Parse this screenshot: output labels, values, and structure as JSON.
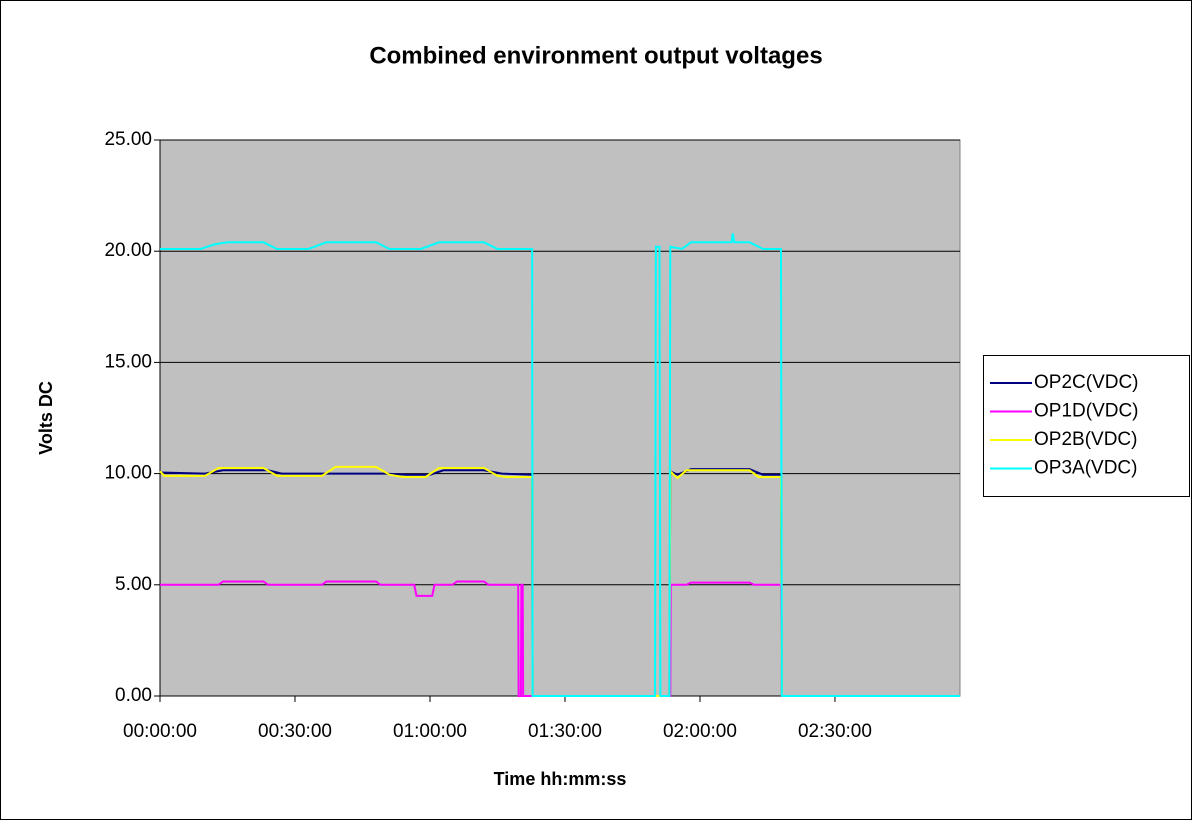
{
  "chart_data": {
    "type": "line",
    "title": "Combined environment output voltages",
    "xlabel": "Time hh:mm:ss",
    "ylabel": "Volts DC",
    "xlim": [
      0,
      10667
    ],
    "ylim": [
      0,
      25
    ],
    "xticks": [
      {
        "value": 0,
        "label": "00:00:00"
      },
      {
        "value": 1800,
        "label": "00:30:00"
      },
      {
        "value": 3600,
        "label": "01:00:00"
      },
      {
        "value": 5400,
        "label": "01:30:00"
      },
      {
        "value": 7200,
        "label": "02:00:00"
      },
      {
        "value": 9000,
        "label": "02:30:00"
      }
    ],
    "yticks": [
      {
        "value": 0,
        "label": "0.00"
      },
      {
        "value": 5,
        "label": "5.00"
      },
      {
        "value": 10,
        "label": "10.00"
      },
      {
        "value": 15,
        "label": "15.00"
      },
      {
        "value": 20,
        "label": "20.00"
      },
      {
        "value": 25,
        "label": "25.00"
      }
    ],
    "grid": true,
    "legend": "right",
    "series": [
      {
        "name": "OP2C(VDC)",
        "color": "#000080",
        "x": [
          0,
          600,
          840,
          1440,
          1620,
          3000,
          3300,
          3600,
          3780,
          4320,
          4560,
          4962,
          4968,
          6792,
          6804,
          6900,
          7080,
          7860,
          8040,
          8280,
          8292,
          10667
        ],
        "values": [
          10.05,
          10.0,
          10.15,
          10.15,
          10.0,
          10.0,
          9.95,
          9.95,
          10.15,
          10.15,
          10.0,
          9.95,
          0,
          0,
          10.1,
          9.95,
          10.2,
          10.2,
          9.95,
          9.95,
          0,
          0
        ]
      },
      {
        "name": "OP1D(VDC)",
        "color": "#ff00ff",
        "x": [
          0,
          780,
          840,
          1380,
          1440,
          2160,
          2220,
          2880,
          2940,
          3390,
          3420,
          3630,
          3660,
          3900,
          3960,
          4320,
          4380,
          4776,
          4782,
          4812,
          4818,
          4836,
          4842,
          6804,
          6810,
          7020,
          7080,
          7860,
          7920,
          8280,
          8292,
          10667
        ],
        "values": [
          5.0,
          5.0,
          5.15,
          5.15,
          5.0,
          5.0,
          5.15,
          5.15,
          5.0,
          5.0,
          4.5,
          4.5,
          5.0,
          5.0,
          5.15,
          5.15,
          5.0,
          5.0,
          0,
          0,
          5.0,
          5.0,
          0,
          0,
          5.0,
          5.0,
          5.1,
          5.1,
          5.0,
          5.0,
          0,
          0
        ]
      },
      {
        "name": "OP2B(VDC)",
        "color": "#ffff00",
        "x": [
          0,
          60,
          600,
          780,
          1380,
          1560,
          2160,
          2340,
          2880,
          3060,
          3240,
          3540,
          3720,
          4320,
          4500,
          4620,
          4962,
          4968,
          6792,
          6804,
          6900,
          7020,
          7860,
          7980,
          8280,
          8292,
          10667
        ],
        "values": [
          10.1,
          9.9,
          9.9,
          10.25,
          10.25,
          9.9,
          9.9,
          10.3,
          10.3,
          9.95,
          9.85,
          9.85,
          10.25,
          10.25,
          9.9,
          9.85,
          9.85,
          0,
          0,
          10.1,
          9.8,
          10.15,
          10.15,
          9.85,
          9.85,
          0,
          0
        ]
      },
      {
        "name": "OP3A(VDC)",
        "color": "#00ffff",
        "x": [
          0,
          540,
          720,
          900,
          1380,
          1560,
          1980,
          2220,
          2880,
          3060,
          3480,
          3720,
          4320,
          4500,
          4962,
          4968,
          6600,
          6612,
          6660,
          6672,
          6792,
          6804,
          6960,
          7080,
          7620,
          7638,
          7656,
          7860,
          8040,
          8280,
          8292,
          10667
        ],
        "values": [
          20.1,
          20.1,
          20.3,
          20.4,
          20.4,
          20.1,
          20.1,
          20.4,
          20.4,
          20.1,
          20.1,
          20.4,
          20.4,
          20.1,
          20.1,
          0,
          0,
          20.2,
          20.2,
          0,
          0,
          20.2,
          20.1,
          20.4,
          20.4,
          20.8,
          20.4,
          20.4,
          20.1,
          20.1,
          0,
          0
        ]
      }
    ]
  }
}
